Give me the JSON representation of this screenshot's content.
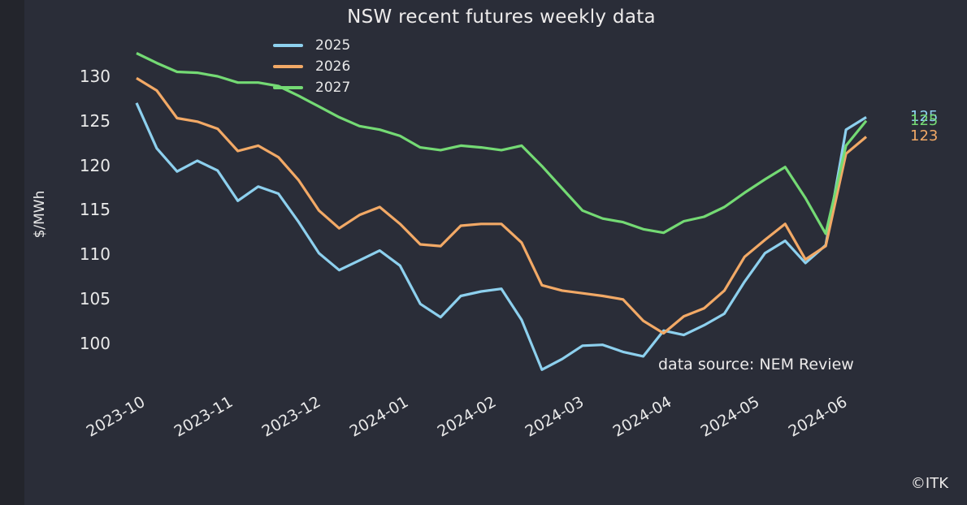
{
  "window": {
    "copyright": "©ITK"
  },
  "chart": {
    "title": "NSW recent futures weekly data",
    "ylabel": "$/MWh",
    "source_note": "data source: NEM Review",
    "colors": {
      "background": "#2a2d38",
      "left_strip": "#23252c",
      "text": "#e9e9e9",
      "series_2025": "#8dd0ee",
      "series_2026": "#f2a966",
      "series_2027": "#74da74"
    },
    "legend": [
      {
        "label": "2025",
        "color": "#8dd0ee"
      },
      {
        "label": "2026",
        "color": "#f2a966"
      },
      {
        "label": "2027",
        "color": "#74da74"
      }
    ],
    "end_labels": [
      {
        "text": "125",
        "series": "2025",
        "color": "#8dd0ee"
      },
      {
        "text": "125",
        "series": "2027",
        "color": "#74da74"
      },
      {
        "text": "123",
        "series": "2026",
        "color": "#f2a966"
      }
    ]
  },
  "chart_data": {
    "type": "line",
    "title": "NSW recent futures weekly data",
    "xlabel": "",
    "ylabel": "$/MWh",
    "x_unit": "weekly dates from 2023-10 to 2024-06",
    "ylim": [
      95,
      134
    ],
    "grid": false,
    "legend_position": "upper left",
    "yticks": [
      130,
      125,
      120,
      115,
      110,
      105,
      100
    ],
    "xticks": [
      "2023-10",
      "2023-11",
      "2023-12",
      "2024-01",
      "2024-02",
      "2024-03",
      "2024-04",
      "2024-05",
      "2024-06"
    ],
    "series": [
      {
        "name": "2025",
        "color": "#8dd0ee",
        "values": [
          127.0,
          121.9,
          119.3,
          120.5,
          119.4,
          116.0,
          117.6,
          116.8,
          113.6,
          110.1,
          108.2,
          109.3,
          110.4,
          108.7,
          104.4,
          102.9,
          105.3,
          105.8,
          106.1,
          102.6,
          97.0,
          98.2,
          99.7,
          99.8,
          99.0,
          98.5,
          101.4,
          100.9,
          102.0,
          103.3,
          106.9,
          110.1,
          111.5,
          109.0,
          111.0,
          124.0,
          125.4
        ]
      },
      {
        "name": "2026",
        "color": "#f2a966",
        "values": [
          129.8,
          128.4,
          125.3,
          124.9,
          124.1,
          121.6,
          122.2,
          120.9,
          118.3,
          114.9,
          112.9,
          114.4,
          115.3,
          113.4,
          111.1,
          110.9,
          113.2,
          113.4,
          113.4,
          111.3,
          106.5,
          105.9,
          105.6,
          105.3,
          104.9,
          102.5,
          101.1,
          103.0,
          103.9,
          105.9,
          109.7,
          111.6,
          113.4,
          109.4,
          110.9,
          121.3,
          123.2
        ]
      },
      {
        "name": "2027",
        "color": "#74da74",
        "values": [
          132.6,
          131.5,
          130.5,
          130.4,
          130.0,
          129.3,
          129.3,
          128.9,
          127.8,
          126.6,
          125.4,
          124.4,
          124.0,
          123.3,
          122.0,
          121.7,
          122.2,
          122.0,
          121.7,
          122.2,
          119.9,
          117.4,
          114.9,
          114.0,
          113.6,
          112.8,
          112.4,
          113.7,
          114.2,
          115.3,
          116.9,
          118.4,
          119.8,
          116.3,
          112.3,
          122.2,
          125.0
        ]
      }
    ],
    "annotations": [
      "data source: NEM Review",
      "125",
      "125",
      "123",
      "©ITK"
    ]
  }
}
